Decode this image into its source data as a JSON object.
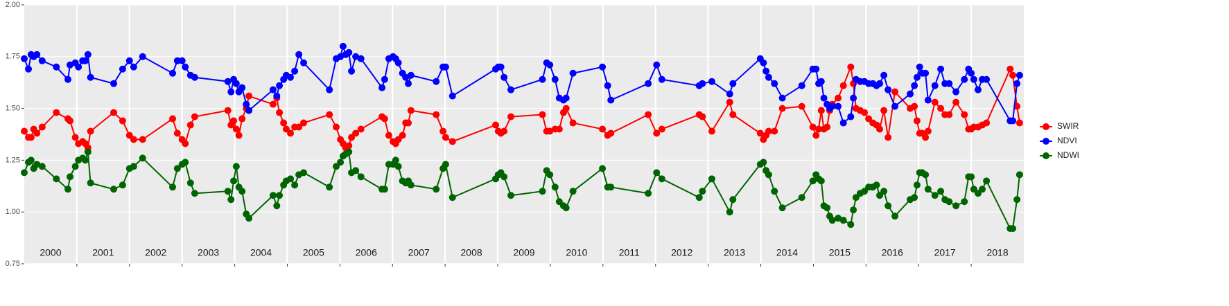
{
  "chart_data": {
    "type": "line",
    "x": [
      2000.0,
      2000.08,
      2000.13,
      2000.18,
      2000.24,
      2000.34,
      2000.61,
      2000.83,
      2000.87,
      2000.97,
      2001.03,
      2001.11,
      2001.16,
      2001.21,
      2001.26,
      2001.7,
      2001.87,
      2002.0,
      2002.08,
      2002.25,
      2002.82,
      2002.91,
      2003.0,
      2003.06,
      2003.16,
      2003.24,
      2003.87,
      2003.93,
      2003.98,
      2004.03,
      2004.08,
      2004.14,
      2004.22,
      2004.27,
      2004.73,
      2004.8,
      2004.85,
      2004.93,
      2004.98,
      2005.06,
      2005.14,
      2005.22,
      2005.31,
      2005.8,
      2005.93,
      2006.01,
      2006.06,
      2006.11,
      2006.17,
      2006.22,
      2006.3,
      2006.4,
      2006.8,
      2006.85,
      2006.93,
      2007.01,
      2007.06,
      2007.11,
      2007.19,
      2007.25,
      2007.3,
      2007.35,
      2007.83,
      2007.96,
      2008.01,
      2008.14,
      2008.96,
      2009.01,
      2009.06,
      2009.12,
      2009.25,
      2009.85,
      2009.93,
      2009.99,
      2010.09,
      2010.17,
      2010.25,
      2010.3,
      2010.43,
      2010.99,
      2011.09,
      2011.15,
      2011.86,
      2012.02,
      2012.12,
      2012.83,
      2012.89,
      2013.07,
      2013.41,
      2013.47,
      2013.99,
      2014.05,
      2014.1,
      2014.15,
      2014.26,
      2014.41,
      2014.78,
      2014.99,
      2015.05,
      2015.1,
      2015.15,
      2015.2,
      2015.26,
      2015.31,
      2015.36,
      2015.47,
      2015.57,
      2015.71,
      2015.76,
      2015.81,
      2015.89,
      2015.97,
      2016.05,
      2016.13,
      2016.2,
      2016.26,
      2016.34,
      2016.42,
      2016.55,
      2016.84,
      2016.92,
      2016.97,
      2017.02,
      2017.07,
      2017.13,
      2017.18,
      2017.31,
      2017.42,
      2017.5,
      2017.58,
      2017.71,
      2017.87,
      2017.95,
      2018.0,
      2018.05,
      2018.13,
      2018.21,
      2018.29,
      2018.74,
      2018.79,
      2018.87,
      2018.92
    ],
    "series": [
      {
        "name": "SWIR",
        "color": "#ff0000",
        "values": [
          1.39,
          1.36,
          1.36,
          1.4,
          1.38,
          1.41,
          1.48,
          1.45,
          1.44,
          1.36,
          1.33,
          1.34,
          1.33,
          1.31,
          1.39,
          1.48,
          1.44,
          1.37,
          1.35,
          1.35,
          1.45,
          1.38,
          1.35,
          1.33,
          1.42,
          1.46,
          1.49,
          1.42,
          1.44,
          1.4,
          1.37,
          1.45,
          1.5,
          1.56,
          1.52,
          1.55,
          1.48,
          1.43,
          1.4,
          1.38,
          1.41,
          1.41,
          1.43,
          1.47,
          1.41,
          1.35,
          1.33,
          1.31,
          1.32,
          1.36,
          1.38,
          1.4,
          1.46,
          1.45,
          1.37,
          1.34,
          1.33,
          1.35,
          1.37,
          1.43,
          1.43,
          1.49,
          1.47,
          1.39,
          1.36,
          1.34,
          1.42,
          1.39,
          1.38,
          1.39,
          1.46,
          1.47,
          1.39,
          1.39,
          1.4,
          1.4,
          1.48,
          1.5,
          1.43,
          1.4,
          1.37,
          1.38,
          1.47,
          1.38,
          1.4,
          1.47,
          1.46,
          1.39,
          1.53,
          1.47,
          1.38,
          1.35,
          1.37,
          1.39,
          1.39,
          1.5,
          1.51,
          1.41,
          1.37,
          1.4,
          1.49,
          1.4,
          1.41,
          1.49,
          1.52,
          1.55,
          1.61,
          1.7,
          1.62,
          1.5,
          1.49,
          1.48,
          1.45,
          1.43,
          1.42,
          1.4,
          1.49,
          1.36,
          1.58,
          1.5,
          1.51,
          1.44,
          1.38,
          1.38,
          1.36,
          1.39,
          1.53,
          1.5,
          1.47,
          1.47,
          1.53,
          1.47,
          1.4,
          1.4,
          1.41,
          1.41,
          1.42,
          1.43,
          1.69,
          1.66,
          1.51,
          1.43
        ]
      },
      {
        "name": "NDVI",
        "color": "#0000ff",
        "values": [
          1.74,
          1.69,
          1.76,
          1.75,
          1.76,
          1.73,
          1.7,
          1.64,
          1.71,
          1.72,
          1.7,
          1.73,
          1.73,
          1.76,
          1.65,
          1.62,
          1.69,
          1.73,
          1.7,
          1.75,
          1.67,
          1.73,
          1.73,
          1.7,
          1.66,
          1.65,
          1.63,
          1.58,
          1.64,
          1.62,
          1.58,
          1.6,
          1.52,
          1.49,
          1.59,
          1.56,
          1.61,
          1.64,
          1.66,
          1.65,
          1.68,
          1.76,
          1.72,
          1.59,
          1.74,
          1.75,
          1.8,
          1.76,
          1.77,
          1.68,
          1.75,
          1.74,
          1.6,
          1.64,
          1.74,
          1.75,
          1.74,
          1.72,
          1.67,
          1.65,
          1.62,
          1.66,
          1.63,
          1.7,
          1.7,
          1.56,
          1.69,
          1.7,
          1.7,
          1.65,
          1.59,
          1.64,
          1.72,
          1.71,
          1.64,
          1.55,
          1.54,
          1.55,
          1.67,
          1.7,
          1.61,
          1.54,
          1.62,
          1.71,
          1.64,
          1.61,
          1.62,
          1.63,
          1.57,
          1.62,
          1.74,
          1.72,
          1.68,
          1.65,
          1.62,
          1.55,
          1.61,
          1.69,
          1.69,
          1.62,
          1.63,
          1.55,
          1.52,
          1.5,
          1.51,
          1.51,
          1.43,
          1.46,
          1.55,
          1.64,
          1.63,
          1.63,
          1.62,
          1.62,
          1.61,
          1.62,
          1.66,
          1.59,
          1.51,
          1.57,
          1.61,
          1.65,
          1.7,
          1.67,
          1.67,
          1.54,
          1.61,
          1.69,
          1.62,
          1.62,
          1.58,
          1.64,
          1.69,
          1.67,
          1.64,
          1.59,
          1.64,
          1.64,
          1.44,
          1.44,
          1.62,
          1.66
        ]
      },
      {
        "name": "NDWI",
        "color": "#006400",
        "values": [
          1.19,
          1.24,
          1.25,
          1.21,
          1.23,
          1.22,
          1.16,
          1.11,
          1.17,
          1.22,
          1.25,
          1.26,
          1.25,
          1.29,
          1.14,
          1.11,
          1.13,
          1.21,
          1.22,
          1.26,
          1.12,
          1.21,
          1.23,
          1.24,
          1.14,
          1.09,
          1.1,
          1.06,
          1.15,
          1.22,
          1.12,
          1.1,
          0.99,
          0.97,
          1.08,
          1.03,
          1.08,
          1.13,
          1.15,
          1.16,
          1.13,
          1.18,
          1.19,
          1.12,
          1.22,
          1.24,
          1.27,
          1.28,
          1.29,
          1.19,
          1.2,
          1.17,
          1.11,
          1.11,
          1.23,
          1.23,
          1.25,
          1.22,
          1.15,
          1.14,
          1.15,
          1.13,
          1.11,
          1.21,
          1.23,
          1.07,
          1.16,
          1.18,
          1.19,
          1.17,
          1.08,
          1.1,
          1.2,
          1.18,
          1.12,
          1.05,
          1.03,
          1.02,
          1.1,
          1.21,
          1.12,
          1.12,
          1.09,
          1.19,
          1.16,
          1.07,
          1.1,
          1.16,
          1.0,
          1.06,
          1.23,
          1.24,
          1.2,
          1.18,
          1.1,
          1.02,
          1.07,
          1.15,
          1.18,
          1.16,
          1.15,
          1.03,
          1.02,
          0.98,
          0.96,
          0.97,
          0.96,
          0.94,
          1.01,
          1.07,
          1.09,
          1.1,
          1.12,
          1.12,
          1.13,
          1.08,
          1.1,
          1.03,
          0.98,
          1.06,
          1.07,
          1.13,
          1.19,
          1.19,
          1.18,
          1.11,
          1.08,
          1.1,
          1.06,
          1.05,
          1.03,
          1.05,
          1.17,
          1.17,
          1.11,
          1.09,
          1.11,
          1.15,
          0.92,
          0.92,
          1.06,
          1.18
        ]
      }
    ],
    "xlim": [
      2000,
      2019
    ],
    "xticks": [
      2001,
      2002,
      2003,
      2004,
      2005,
      2006,
      2007,
      2008,
      2009,
      2010,
      2011,
      2012,
      2013,
      2014,
      2015,
      2016,
      2017,
      2018
    ],
    "year_labels": [
      "2000",
      "2001",
      "2002",
      "2003",
      "2004",
      "2005",
      "2006",
      "2007",
      "2008",
      "2009",
      "2010",
      "2011",
      "2012",
      "2013",
      "2014",
      "2015",
      "2016",
      "2017",
      "2018"
    ],
    "ylim": [
      0.75,
      2.0
    ],
    "yticks": [
      {
        "value": 0.75,
        "label": "0.75"
      },
      {
        "value": 1.0,
        "label": "1.00"
      },
      {
        "value": 1.25,
        "label": "1.25"
      },
      {
        "value": 1.5,
        "label": "1.50"
      },
      {
        "value": 1.75,
        "label": "1.75"
      },
      {
        "value": 2.0,
        "label": "2.00"
      }
    ],
    "grid": true,
    "legend": "right"
  }
}
